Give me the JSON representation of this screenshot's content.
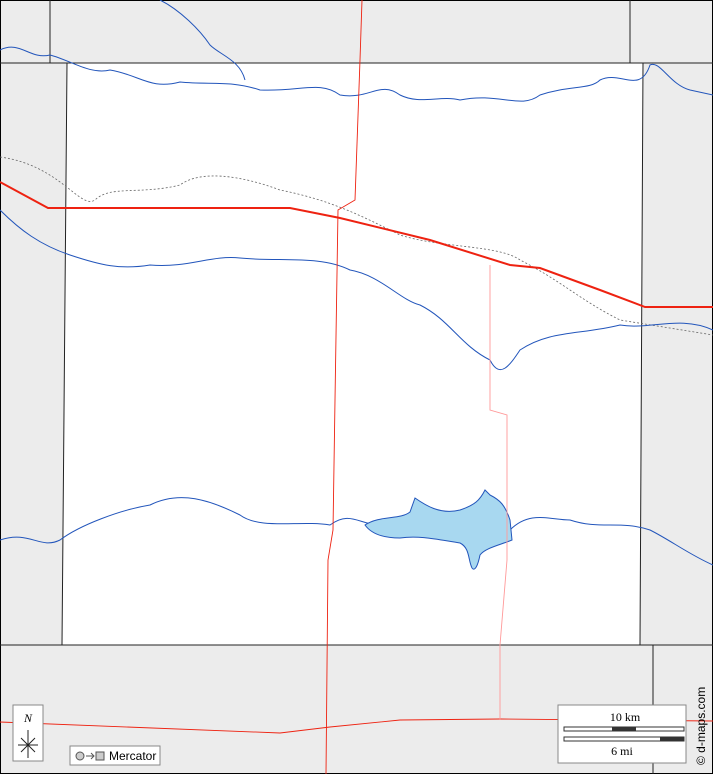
{
  "compass": {
    "label": "N"
  },
  "projection": {
    "label": "Mercator"
  },
  "scale": {
    "km": "10 km",
    "mi": "6 mi"
  },
  "credit": "© d-maps.com"
}
